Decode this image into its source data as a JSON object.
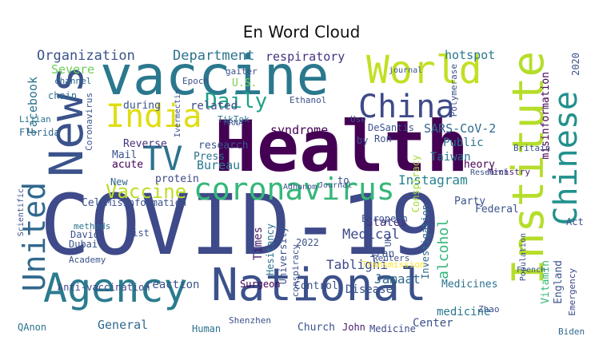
{
  "title": "En Word Cloud",
  "words": [
    {
      "text": "COVID-19",
      "color": "#3e4a89"
    },
    {
      "text": "Health",
      "color": "#440154"
    },
    {
      "text": "vaccine",
      "color": "#2a788e"
    },
    {
      "text": "National",
      "color": "#3b518b"
    },
    {
      "text": "Agency",
      "color": "#2a7b8e"
    },
    {
      "text": "News",
      "color": "#3b528b"
    },
    {
      "text": "coronavirus",
      "color": "#35b779"
    },
    {
      "text": "India",
      "color": "#e0dd12"
    },
    {
      "text": "World",
      "color": "#c2df23"
    },
    {
      "text": "China",
      "color": "#3e4a89"
    },
    {
      "text": "Institute",
      "color": "#b5de2b"
    },
    {
      "text": "Chinese",
      "color": "#21918c"
    },
    {
      "text": "TV",
      "color": "#2c728e"
    },
    {
      "text": "United",
      "color": "#31688e"
    },
    {
      "text": "Daily",
      "color": "#1fa088"
    },
    {
      "text": "Vaccine",
      "color": "#bddf26"
    },
    {
      "text": "Department",
      "color": "#2c728e"
    },
    {
      "text": "Organization",
      "color": "#3b528b"
    },
    {
      "text": "respiratory",
      "color": "#46327e"
    },
    {
      "text": "hotspot",
      "color": "#2a788e"
    },
    {
      "text": "Facebook",
      "color": "#2c728e"
    },
    {
      "text": "Severe",
      "color": "#6ece58"
    },
    {
      "text": "related",
      "color": "#3e4a89"
    },
    {
      "text": "syndrome",
      "color": "#440154"
    },
    {
      "text": "SARS-CoV-2",
      "color": "#31688e"
    },
    {
      "text": "Instagram",
      "color": "#26828e"
    },
    {
      "text": "Taiwan",
      "color": "#2c728e"
    },
    {
      "text": "Tablighi",
      "color": "#3e4a89"
    },
    {
      "text": "Jamaat",
      "color": "#31688e"
    },
    {
      "text": "Medical",
      "color": "#3e4a89"
    },
    {
      "text": "States",
      "color": "#46327e"
    },
    {
      "text": "Times",
      "color": "#481a6c"
    },
    {
      "text": "Bureau",
      "color": "#2a788e"
    },
    {
      "text": "research",
      "color": "#3b528b"
    },
    {
      "text": "Reverse",
      "color": "#46327e"
    },
    {
      "text": "Press",
      "color": "#2c728e"
    },
    {
      "text": "Cell",
      "color": "#3b528b"
    },
    {
      "text": "acute",
      "color": "#440154"
    },
    {
      "text": "Mail",
      "color": "#3b528b"
    },
    {
      "text": "New",
      "color": "#31688e"
    },
    {
      "text": "protein",
      "color": "#3e4a89"
    },
    {
      "text": "during",
      "color": "#3b528b"
    },
    {
      "text": "General",
      "color": "#31688e"
    },
    {
      "text": "reaction",
      "color": "#3b528b"
    },
    {
      "text": "Surgeon",
      "color": "#440154"
    },
    {
      "text": "Disease",
      "color": "#3b528b"
    },
    {
      "text": "Control",
      "color": "#3b528b"
    },
    {
      "text": "Center",
      "color": "#3b528b"
    },
    {
      "text": "Medicines",
      "color": "#2c728e"
    },
    {
      "text": "medicine",
      "color": "#2a788e"
    },
    {
      "text": "Church",
      "color": "#3b528b"
    },
    {
      "text": "John",
      "color": "#481a6c"
    },
    {
      "text": "Medicine",
      "color": "#3e4a89"
    },
    {
      "text": "Human",
      "color": "#2c728e"
    },
    {
      "text": "Shenzhen",
      "color": "#3b528b"
    },
    {
      "text": "QAnon",
      "color": "#2c728e"
    },
    {
      "text": "Anti-vaccination",
      "color": "#3e4a89"
    },
    {
      "text": "Misinformation",
      "color": "#3b528b"
    },
    {
      "text": "Iran",
      "color": "#3b528b"
    },
    {
      "text": "alcohol",
      "color": "#35b779"
    },
    {
      "text": "Investigation",
      "color": "#31688e"
    },
    {
      "text": "Transmission",
      "color": "#fde725"
    },
    {
      "text": "Party",
      "color": "#3b528b"
    },
    {
      "text": "theory",
      "color": "#440154"
    },
    {
      "text": "Public",
      "color": "#2c728e"
    },
    {
      "text": "Ministry",
      "color": "#481a6c"
    },
    {
      "text": "Vitamin",
      "color": "#35b779"
    },
    {
      "text": "England",
      "color": "#3b528b"
    },
    {
      "text": "misinformation",
      "color": "#440154"
    },
    {
      "text": "2020",
      "color": "#3b528b"
    },
    {
      "text": "Emergency",
      "color": "#3e4a89"
    },
    {
      "text": "Biden",
      "color": "#31688e"
    },
    {
      "text": "Federal",
      "color": "#3b528b"
    },
    {
      "text": "Act",
      "color": "#3b528b"
    },
    {
      "text": "European",
      "color": "#3b528b"
    },
    {
      "text": "Dubai",
      "color": "#3b528b"
    },
    {
      "text": "David",
      "color": "#3b528b"
    },
    {
      "text": "List",
      "color": "#3b528b"
    },
    {
      "text": "Academy",
      "color": "#3b528b"
    },
    {
      "text": "methods",
      "color": "#2c728e"
    },
    {
      "text": "Zhao",
      "color": "#3b528b"
    },
    {
      "text": "French",
      "color": "#3b528b"
    },
    {
      "text": "Population",
      "color": "#3b528b"
    },
    {
      "text": "Britain",
      "color": "#3b528b"
    },
    {
      "text": "Research",
      "color": "#3b528b"
    },
    {
      "text": "Florida",
      "color": "#31688e"
    },
    {
      "text": "Lijian",
      "color": "#2c728e"
    },
    {
      "text": "chain",
      "color": "#2c728e"
    },
    {
      "text": "channel",
      "color": "#31688e"
    },
    {
      "text": "Coronavirus",
      "color": "#3b528b"
    },
    {
      "text": "Epoch",
      "color": "#3b528b"
    },
    {
      "text": "U.S.",
      "color": "#7ad151"
    },
    {
      "text": "TikTok",
      "color": "#2a788e"
    },
    {
      "text": "DeSantis",
      "color": "#3b528b"
    },
    {
      "text": "Ron",
      "color": "#3b528b"
    },
    {
      "text": "by",
      "color": "#3b528b"
    },
    {
      "text": "to",
      "color": "#3b528b"
    },
    {
      "text": "Use",
      "color": "#3b528b"
    },
    {
      "text": "Ethanol",
      "color": "#3b528b"
    },
    {
      "text": "Adhanom",
      "color": "#3b528b"
    },
    {
      "text": "Journal",
      "color": "#3b528b"
    },
    {
      "text": "Conspiracy",
      "color": "#a0da39"
    },
    {
      "text": "Polymerase",
      "color": "#3b528b"
    },
    {
      "text": "MRNA",
      "color": "#3b528b"
    },
    {
      "text": "Ivermectin",
      "color": "#3b528b"
    },
    {
      "text": "gaiter",
      "color": "#3b528b"
    },
    {
      "text": "journal",
      "color": "#3b528b"
    },
    {
      "text": "Reuters",
      "color": "#3b528b"
    },
    {
      "text": "UK",
      "color": "#3b528b"
    },
    {
      "text": "2022",
      "color": "#3b528b"
    },
    {
      "text": "Hesitancy",
      "color": "#2c728e"
    },
    {
      "text": "University",
      "color": "#3b528b"
    },
    {
      "text": "conspiracy",
      "color": "#3b528b"
    },
    {
      "text": "Scientific",
      "color": "#3b528b"
    }
  ]
}
